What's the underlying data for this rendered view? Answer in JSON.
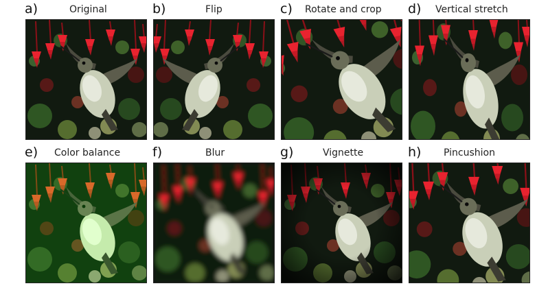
{
  "panels": [
    {
      "letter": "a)",
      "title": "Original",
      "variant": "original"
    },
    {
      "letter": "b)",
      "title": "Flip",
      "variant": "flip"
    },
    {
      "letter": "c)",
      "title": "Rotate and crop",
      "variant": "rotate"
    },
    {
      "letter": "d)",
      "title": "Vertical stretch",
      "variant": "stretch"
    },
    {
      "letter": "e)",
      "title": "Color balance",
      "variant": "color"
    },
    {
      "letter": "f)",
      "title": "Blur",
      "variant": "blur"
    },
    {
      "letter": "g)",
      "title": "Vignette",
      "variant": "vignette"
    },
    {
      "letter": "h)",
      "title": "Pincushion",
      "variant": "pincushion"
    }
  ],
  "colors": {
    "background": "#ffffff",
    "frame": "#222222",
    "flowers": "#e8232f",
    "foliage": "#2e5a22",
    "bird": "#c9cfb8"
  }
}
